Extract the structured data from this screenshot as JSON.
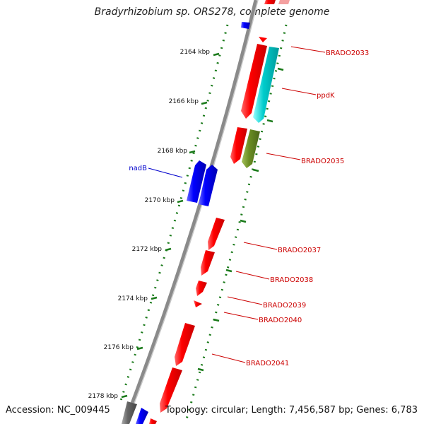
{
  "title": "Bradyrhizobium sp. ORS278, complete genome",
  "accession": "Accession: NC_009445",
  "topology": "Topology: circular; Length: 7,456,587 bp; Genes: 6,783",
  "colors": {
    "backbone": "#888888",
    "forward_gene": "#ff0000",
    "forward_gene_highlight": "#0000ff",
    "reverse_gene": "#00cccc",
    "reverse_gene_alt": "#6b8e23",
    "tick": "#1a7a1a",
    "label_red": "#cc0000",
    "label_blue": "#0000cc"
  },
  "scale": {
    "ticks": [
      {
        "label": "2164 kbp"
      },
      {
        "label": "2166 kbp"
      },
      {
        "label": "2168 kbp"
      },
      {
        "label": "2170 kbp"
      },
      {
        "label": "2172 kbp"
      },
      {
        "label": "2174 kbp"
      },
      {
        "label": "2176 kbp"
      },
      {
        "label": "2178 kbp"
      }
    ]
  },
  "genes": [
    {
      "name": "BRADO2033",
      "color": "red"
    },
    {
      "name": "ppdK",
      "color": "red"
    },
    {
      "name": "BRADO2035",
      "color": "red"
    },
    {
      "name": "nadB",
      "color": "blue"
    },
    {
      "name": "BRADO2037",
      "color": "red"
    },
    {
      "name": "BRADO2038",
      "color": "red"
    },
    {
      "name": "BRADO2039",
      "color": "red"
    },
    {
      "name": "BRADO2040",
      "color": "red"
    },
    {
      "name": "BRADO2041",
      "color": "red"
    }
  ]
}
